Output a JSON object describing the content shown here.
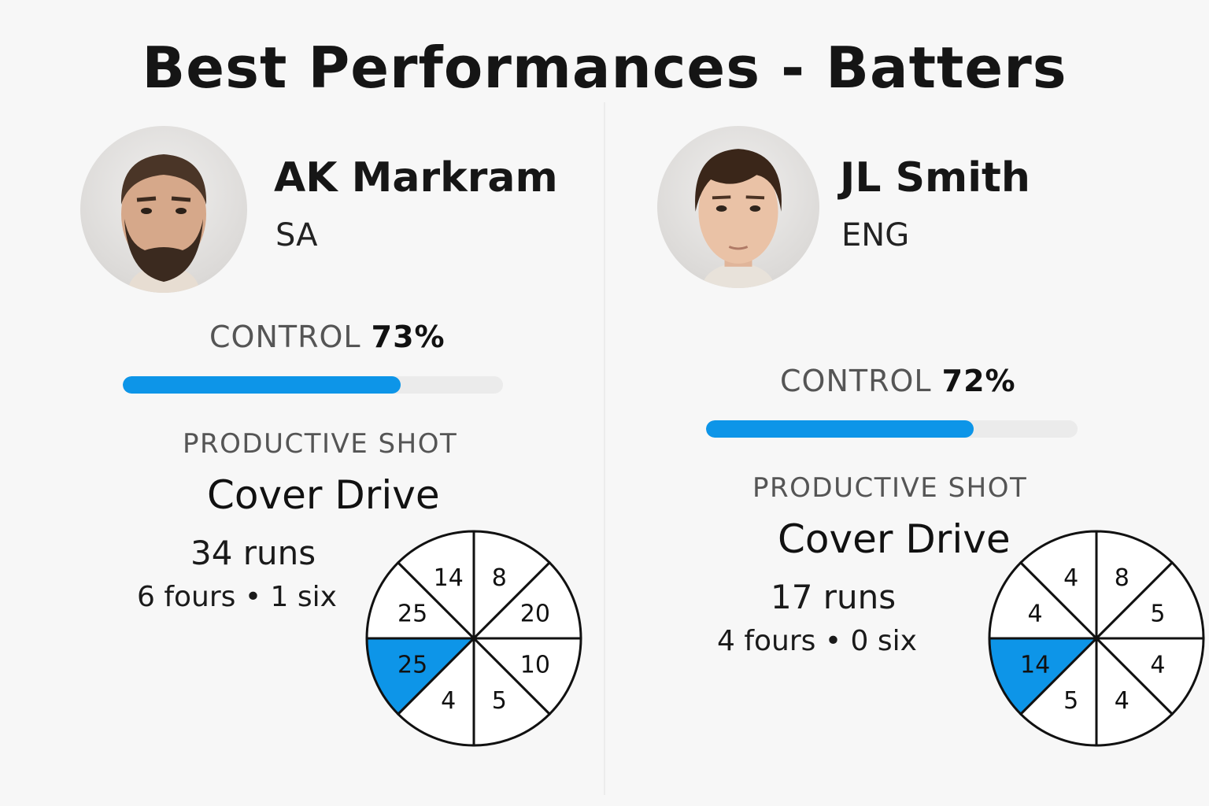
{
  "title": "Best Performances - Batters",
  "colors": {
    "accent": "#0d95e8",
    "track": "#ebebeb",
    "background": "#f7f7f7"
  },
  "players": [
    {
      "name": "AK Markram",
      "team": "SA",
      "control_label": "CONTROL",
      "control_value": "73%",
      "control_fraction": 0.73,
      "shot_label": "PRODUCTIVE SHOT",
      "shot_name": "Cover Drive",
      "runs": "34 runs",
      "boundaries": "6 fours • 1 six",
      "wagon_wheel": [
        "8",
        "20",
        "10",
        "5",
        "4",
        "25",
        "25",
        "14"
      ],
      "highlight_index": 5
    },
    {
      "name": "JL Smith",
      "team": "ENG",
      "control_label": "CONTROL",
      "control_value": "72%",
      "control_fraction": 0.72,
      "shot_label": "PRODUCTIVE SHOT",
      "shot_name": "Cover Drive",
      "runs": "17 runs",
      "boundaries": "4 fours • 0 six",
      "wagon_wheel": [
        "8",
        "5",
        "4",
        "4",
        "5",
        "14",
        "4",
        "4"
      ],
      "highlight_index": 5
    }
  ]
}
